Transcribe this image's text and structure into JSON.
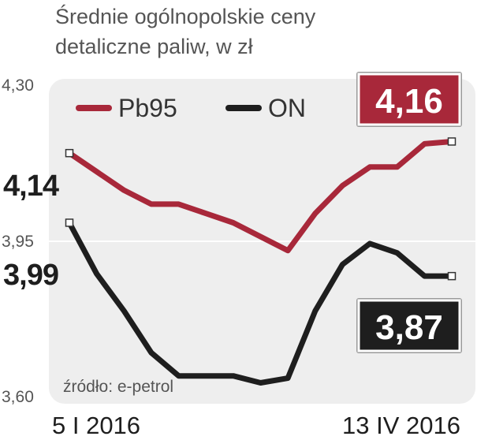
{
  "chart_data": {
    "type": "line",
    "title": "Średnie ogólnopolskie ceny detaliczne paliw, w zł",
    "title_lines": [
      "Średnie ogólnopolskie ceny",
      "detaliczne paliw, w zł"
    ],
    "x_labels": [
      "5 I 2016",
      "13 IV 2016"
    ],
    "y_ticks": [
      "4,30",
      "3,95",
      "3,60"
    ],
    "y_tick_values": [
      4.3,
      3.95,
      3.6
    ],
    "ylim": [
      3.6,
      4.3
    ],
    "grid": true,
    "legend_position": "top-left",
    "source": "źródło: e-petrol",
    "series": [
      {
        "name": "Pb95",
        "color": "#a8283a",
        "start_label": "4,14",
        "end_label": "4,16",
        "values": [
          4.14,
          4.1,
          4.06,
          4.03,
          4.03,
          4.01,
          3.99,
          3.96,
          3.93,
          4.01,
          4.07,
          4.11,
          4.11,
          4.16,
          4.165
        ]
      },
      {
        "name": "ON",
        "color": "#1e1e1e",
        "start_label": "3,99",
        "end_label": "3,87",
        "values": [
          3.99,
          3.88,
          3.8,
          3.71,
          3.66,
          3.66,
          3.66,
          3.645,
          3.655,
          3.8,
          3.9,
          3.945,
          3.925,
          3.875,
          3.875
        ]
      }
    ]
  }
}
